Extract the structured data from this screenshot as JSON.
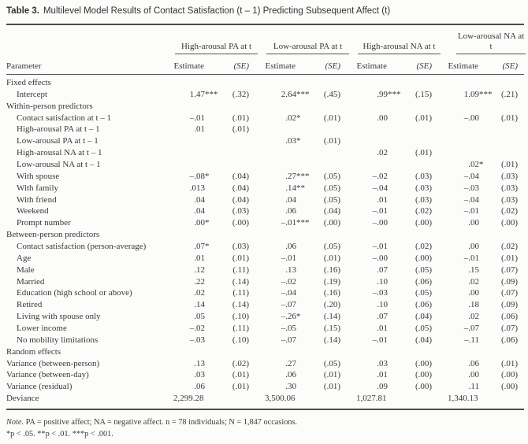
{
  "title": {
    "label": "Table 3.",
    "text": "Multilevel Model Results of Contact Satisfaction (t – 1) Predicting Subsequent Affect (t)"
  },
  "colors": {
    "text": "#383838",
    "rule": "#4d4d4d",
    "background": "#fcfcfb"
  },
  "table": {
    "parameter_header": "Parameter",
    "estimate_header": "Estimate",
    "se_header": "(SE)",
    "groups": [
      {
        "label": "High-arousal PA at t"
      },
      {
        "label": "Low-arousal PA at t"
      },
      {
        "label": "High-arousal NA at t"
      },
      {
        "label": "Low-arousal NA at t"
      }
    ],
    "rows": [
      {
        "label": "Fixed effects",
        "indent": false,
        "values": [
          "",
          "",
          "",
          "",
          "",
          "",
          "",
          ""
        ]
      },
      {
        "label": "Intercept",
        "indent": true,
        "values": [
          "1.47***",
          "(.32)",
          "2.64***",
          "(.45)",
          ".99***",
          "(.15)",
          "1.09***",
          "(.21)"
        ]
      },
      {
        "label": "Within-person predictors",
        "indent": false,
        "values": [
          "",
          "",
          "",
          "",
          "",
          "",
          "",
          ""
        ]
      },
      {
        "label": "Contact satisfaction at t – 1",
        "indent": true,
        "values": [
          "–.01",
          "(.01)",
          ".02*",
          "(.01)",
          ".00",
          "(.01)",
          "–.00",
          "(.01)"
        ]
      },
      {
        "label": "High-arousal PA at t – 1",
        "indent": true,
        "values": [
          ".01",
          "(.01)",
          "",
          "",
          "",
          "",
          "",
          ""
        ]
      },
      {
        "label": "Low-arousal PA at t – 1",
        "indent": true,
        "values": [
          "",
          "",
          ".03*",
          "(.01)",
          "",
          "",
          "",
          ""
        ]
      },
      {
        "label": "High-arousal NA at t – 1",
        "indent": true,
        "values": [
          "",
          "",
          "",
          "",
          ".02",
          "(.01)",
          "",
          ""
        ]
      },
      {
        "label": "Low-arousal NA at t – 1",
        "indent": true,
        "values": [
          "",
          "",
          "",
          "",
          "",
          "",
          ".02*",
          "(.01)"
        ]
      },
      {
        "label": "With spouse",
        "indent": true,
        "values": [
          "–.08*",
          "(.04)",
          ".27***",
          "(.05)",
          "–.02",
          "(.03)",
          "–.04",
          "(.03)"
        ]
      },
      {
        "label": "With family",
        "indent": true,
        "values": [
          ".013",
          "(.04)",
          ".14**",
          "(.05)",
          "–.04",
          "(.03)",
          "–.03",
          "(.03)"
        ]
      },
      {
        "label": "With friend",
        "indent": true,
        "values": [
          ".04",
          "(.04)",
          ".04",
          "(.05)",
          ".01",
          "(.03)",
          "–.04",
          "(.03)"
        ]
      },
      {
        "label": "Weekend",
        "indent": true,
        "values": [
          ".04",
          "(.03)",
          ".06",
          "(.04)",
          "–.01",
          "(.02)",
          "–.01",
          "(.02)"
        ]
      },
      {
        "label": "Prompt number",
        "indent": true,
        "values": [
          ".00*",
          "(.00)",
          "–.01***",
          "(.00)",
          "–.00",
          "(.00)",
          ".00",
          "(.00)"
        ]
      },
      {
        "label": "Between-person predictors",
        "indent": false,
        "values": [
          "",
          "",
          "",
          "",
          "",
          "",
          "",
          ""
        ]
      },
      {
        "label": "Contact satisfaction (person-average)",
        "indent": true,
        "values": [
          ".07*",
          "(.03)",
          ".06",
          "(.05)",
          "–.01",
          "(.02)",
          ".00",
          "(.02)"
        ]
      },
      {
        "label": "Age",
        "indent": true,
        "values": [
          ".01",
          "(.01)",
          "–.01",
          "(.01)",
          "–.00",
          "(.00)",
          "–.01",
          "(.01)"
        ]
      },
      {
        "label": "Male",
        "indent": true,
        "values": [
          ".12",
          "(.11)",
          ".13",
          "(.16)",
          ".07",
          "(.05)",
          ".15",
          "(.07)"
        ]
      },
      {
        "label": "Married",
        "indent": true,
        "values": [
          ".22",
          "(.14)",
          "–.02",
          "(.19)",
          ".10",
          "(.06)",
          ".02",
          "(.09)"
        ]
      },
      {
        "label": "Education (high school or above)",
        "indent": true,
        "values": [
          ".02",
          "(.11)",
          "–.04",
          "(.16)",
          "–.03",
          "(.05)",
          ".00",
          "(.07)"
        ]
      },
      {
        "label": "Retired",
        "indent": true,
        "values": [
          ".14",
          "(.14)",
          "–.07",
          "(.20)",
          ".10",
          "(.06)",
          ".18",
          "(.09)"
        ]
      },
      {
        "label": "Living with spouse only",
        "indent": true,
        "values": [
          ".05",
          "(.10)",
          "–.26*",
          "(.14)",
          ".07",
          "(.04)",
          ".02",
          "(.06)"
        ]
      },
      {
        "label": "Lower income",
        "indent": true,
        "values": [
          "–.02",
          "(.11)",
          "–.05",
          "(.15)",
          ".01",
          "(.05)",
          "–.07",
          "(.07)"
        ]
      },
      {
        "label": "No mobility limitations",
        "indent": true,
        "values": [
          "–.03",
          "(.10)",
          "–.07",
          "(.14)",
          "–.01",
          "(.04)",
          "–.11",
          "(.06)"
        ]
      },
      {
        "label": "Random effects",
        "indent": false,
        "values": [
          "",
          "",
          "",
          "",
          "",
          "",
          "",
          ""
        ]
      },
      {
        "label": "Variance (between-person)",
        "indent": false,
        "values": [
          ".13",
          "(.02)",
          ".27",
          "(.05)",
          ".03",
          "(.00)",
          ".06",
          "(.01)"
        ]
      },
      {
        "label": "Variance (between-day)",
        "indent": false,
        "values": [
          ".03",
          "(.01)",
          ".06",
          "(.01)",
          ".01",
          "(.00)",
          ".00",
          "(.00)"
        ]
      },
      {
        "label": "Variance (residual)",
        "indent": false,
        "values": [
          ".06",
          "(.01)",
          ".30",
          "(.01)",
          ".09",
          "(.00)",
          ".11",
          "(.00)"
        ]
      },
      {
        "label": "Deviance",
        "indent": false,
        "deviance": true,
        "values": [
          "2,299.28",
          "3,500.06",
          "1,027.81",
          "1,340.13"
        ]
      }
    ]
  },
  "note": {
    "label": "Note.",
    "text": "PA = positive affect; NA = negative affect. n = 78 individuals; N = 1,847 occasions."
  },
  "significance": "*p < .05. **p < .01. ***p < .001."
}
